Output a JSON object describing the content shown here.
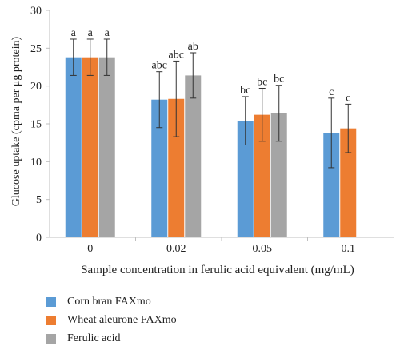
{
  "chart_data": {
    "type": "bar",
    "title": "",
    "xlabel": "Sample concentration in ferulic acid equivalent (mg/mL)",
    "ylabel": "Glucose uptake (cpma per μg protein)",
    "ylim": [
      0,
      30
    ],
    "yticks": [
      "0",
      "5",
      "10",
      "15",
      "20",
      "25",
      "30"
    ],
    "categories": [
      "0",
      "0.02",
      "0.05",
      "0.1"
    ],
    "legend_position": "bottom-left",
    "grid": false,
    "series": [
      {
        "name": "Corn bran FAXmo",
        "color": "#5B9BD5",
        "values": [
          23.8,
          18.2,
          15.4,
          13.8
        ],
        "errors": [
          2.4,
          3.7,
          3.2,
          4.6
        ],
        "labels": [
          "a",
          "abc",
          "bc",
          "c"
        ]
      },
      {
        "name": "Wheat aleurone FAXmo",
        "color": "#ED7D31",
        "values": [
          23.8,
          18.3,
          16.2,
          14.4
        ],
        "errors": [
          2.4,
          5.0,
          3.5,
          3.2
        ],
        "labels": [
          "a",
          "abc",
          "bc",
          "c"
        ]
      },
      {
        "name": "Ferulic acid",
        "color": "#A5A5A5",
        "values": [
          23.8,
          21.4,
          16.4,
          null
        ],
        "errors": [
          2.4,
          3.0,
          3.7,
          null
        ],
        "labels": [
          "a",
          "ab",
          "bc",
          ""
        ]
      }
    ]
  }
}
